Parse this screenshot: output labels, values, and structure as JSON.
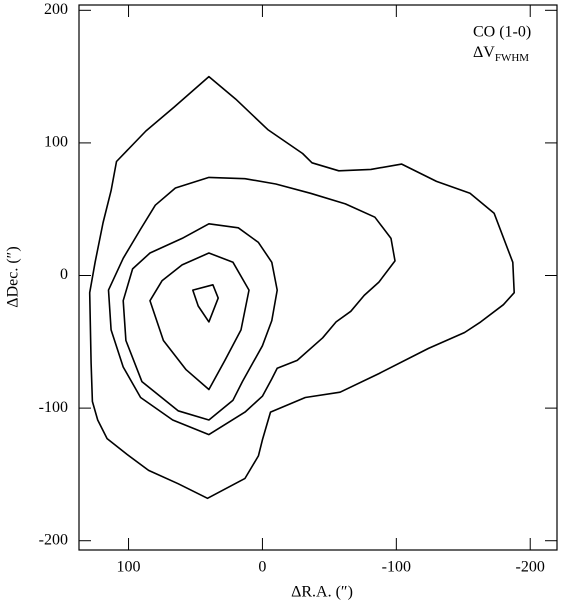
{
  "chart_data": {
    "type": "contour",
    "xlabel": "ΔR.A. (″)",
    "ylabel": "ΔDec. (″)",
    "annotation": {
      "line1": "CO (1-0)",
      "line2": "ΔV",
      "line2_sub": "FWHM"
    },
    "xlim": [
      137,
      -220
    ],
    "ylim": [
      -207,
      204
    ],
    "xticks": [
      100,
      0,
      -100,
      -200
    ],
    "yticks": [
      -200,
      -100,
      0,
      100,
      200
    ],
    "series": [
      {
        "color": "#000000",
        "x": [
          40,
          20,
          -4,
          -30,
          -37,
          -57,
          -81,
          -104,
          -130,
          -155,
          -173,
          -187,
          -188,
          -180,
          -163,
          -151,
          -124,
          -87,
          -58,
          -32,
          -6,
          0,
          3,
          13,
          41,
          63,
          85,
          101,
          116,
          123,
          127,
          128,
          129,
          125,
          119,
          113,
          109,
          87,
          66
        ],
        "y": [
          150,
          133,
          110,
          92,
          85,
          79,
          80,
          84,
          71,
          62,
          47,
          10,
          -13,
          -22,
          -35,
          -43,
          -55,
          -74,
          -88,
          -92,
          -103,
          -124,
          -136,
          -153,
          -168,
          -157,
          -147,
          -135,
          -123,
          -109,
          -95,
          -66,
          -13,
          10,
          40,
          64,
          86,
          109,
          127
        ]
      },
      {
        "color": "#000000",
        "x": [
          65,
          40,
          13,
          -10,
          -36,
          -62,
          -84,
          -96,
          -99,
          -87,
          -76,
          -66,
          -55,
          -45,
          -26,
          -11,
          -7,
          0,
          13,
          40,
          67,
          91,
          104,
          113,
          115,
          104,
          91,
          80
        ],
        "y": [
          66,
          74,
          73,
          69,
          62,
          54,
          44,
          28,
          11,
          -5,
          -15,
          -27,
          -35,
          -47,
          -64,
          -70,
          -78,
          -91,
          -103,
          -120,
          -109,
          -92,
          -69,
          -41,
          -11,
          13,
          35,
          53
        ]
      },
      {
        "color": "#000000",
        "x": [
          60,
          40,
          18,
          3,
          -7,
          -11,
          -7,
          0,
          15,
          22,
          40,
          63,
          90,
          102,
          104,
          97,
          84
        ],
        "y": [
          28,
          39,
          36,
          25,
          10,
          -11,
          -34,
          -53,
          -80,
          -94,
          -109,
          -102,
          -80,
          -49,
          -19,
          5,
          17
        ]
      },
      {
        "color": "#000000",
        "x": [
          60,
          40,
          22,
          10,
          16,
          28,
          40,
          57,
          74,
          84,
          75
        ],
        "y": [
          8,
          17,
          10,
          -11,
          -41,
          -64,
          -86,
          -71,
          -49,
          -19,
          -4
        ]
      },
      {
        "color": "#000000",
        "x": [
          52,
          37,
          33,
          40,
          48
        ],
        "y": [
          -11,
          -7,
          -17,
          -35,
          -23
        ]
      }
    ]
  }
}
